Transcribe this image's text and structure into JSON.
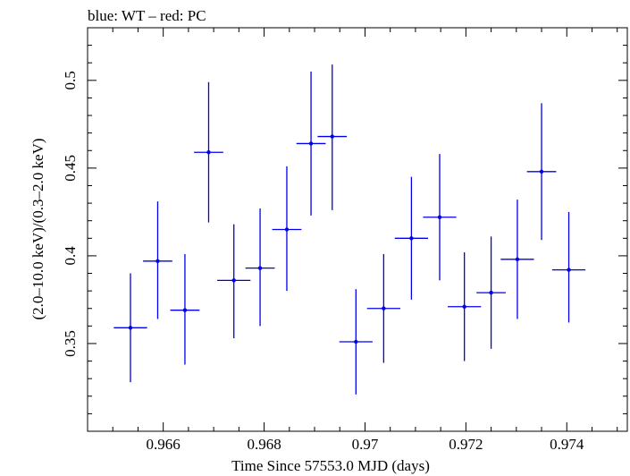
{
  "header": {
    "title": "blue: WT – red: PC"
  },
  "chart_data": {
    "type": "scatter",
    "title": "blue: WT – red: PC",
    "xlabel": "Time Since 57553.0 MJD (days)",
    "ylabel": "(2.0–10.0 keV)/(0.3–2.0 keV)",
    "xlim": [
      0.9645,
      0.9752
    ],
    "ylim": [
      0.3,
      0.53
    ],
    "xticks": [
      0.966,
      0.968,
      0.97,
      0.972,
      0.974
    ],
    "xtick_labels": [
      "0.966",
      "0.968",
      "0.97",
      "0.972",
      "0.974"
    ],
    "yticks": [
      0.35,
      0.4,
      0.45,
      0.5
    ],
    "ytick_labels": [
      "0.35",
      "0.4",
      "0.45",
      "0.5"
    ],
    "grid": false,
    "series": [
      {
        "name": "WT",
        "color": "#0000ee",
        "points": [
          {
            "x": 0.96535,
            "y": 0.359,
            "xerr": 0.00033,
            "ylo": 0.328,
            "yhi": 0.39
          },
          {
            "x": 0.96589,
            "y": 0.397,
            "xerr": 0.00029,
            "ylo": 0.364,
            "yhi": 0.431
          },
          {
            "x": 0.96643,
            "y": 0.369,
            "xerr": 0.00029,
            "ylo": 0.338,
            "yhi": 0.401
          },
          {
            "x": 0.9669,
            "y": 0.459,
            "xerr": 0.00029,
            "ylo": 0.419,
            "yhi": 0.499
          },
          {
            "x": 0.9674,
            "y": 0.386,
            "xerr": 0.00033,
            "ylo": 0.353,
            "yhi": 0.418
          },
          {
            "x": 0.96792,
            "y": 0.393,
            "xerr": 0.00029,
            "ylo": 0.36,
            "yhi": 0.427
          },
          {
            "x": 0.96845,
            "y": 0.415,
            "xerr": 0.00029,
            "ylo": 0.38,
            "yhi": 0.451
          },
          {
            "x": 0.96893,
            "y": 0.464,
            "xerr": 0.00029,
            "ylo": 0.423,
            "yhi": 0.505
          },
          {
            "x": 0.96935,
            "y": 0.468,
            "xerr": 0.00029,
            "ylo": 0.426,
            "yhi": 0.509
          },
          {
            "x": 0.96982,
            "y": 0.351,
            "xerr": 0.00033,
            "ylo": 0.321,
            "yhi": 0.381
          },
          {
            "x": 0.97037,
            "y": 0.37,
            "xerr": 0.00033,
            "ylo": 0.339,
            "yhi": 0.401
          },
          {
            "x": 0.97092,
            "y": 0.41,
            "xerr": 0.00033,
            "ylo": 0.375,
            "yhi": 0.445
          },
          {
            "x": 0.97148,
            "y": 0.422,
            "xerr": 0.00033,
            "ylo": 0.386,
            "yhi": 0.458
          },
          {
            "x": 0.97197,
            "y": 0.371,
            "xerr": 0.00033,
            "ylo": 0.34,
            "yhi": 0.402
          },
          {
            "x": 0.9725,
            "y": 0.379,
            "xerr": 0.00029,
            "ylo": 0.347,
            "yhi": 0.411
          },
          {
            "x": 0.97302,
            "y": 0.398,
            "xerr": 0.00033,
            "ylo": 0.364,
            "yhi": 0.432
          },
          {
            "x": 0.9735,
            "y": 0.448,
            "xerr": 0.00029,
            "ylo": 0.409,
            "yhi": 0.487
          },
          {
            "x": 0.97404,
            "y": 0.392,
            "xerr": 0.00033,
            "ylo": 0.362,
            "yhi": 0.425
          }
        ]
      }
    ]
  }
}
